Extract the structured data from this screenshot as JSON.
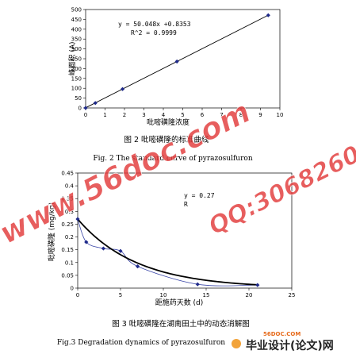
{
  "chart_data": [
    {
      "type": "scatter",
      "x": [
        0,
        0.5,
        1.9,
        4.7,
        9.4
      ],
      "y": [
        0,
        25,
        96,
        236,
        471
      ],
      "trendline": {
        "slope": 50.048,
        "intercept": 0.8353
      },
      "equation": "y = 50.048x +0.8353",
      "r2": "R^2 = 0.9999",
      "xlabel": "吡嘧磺隆浓度",
      "ylabel": "峰面积 (A)",
      "xlim": [
        0,
        10
      ],
      "ylim": [
        0,
        500
      ],
      "xticks": [
        "0",
        "1",
        "2",
        "3",
        "4",
        "5",
        "6",
        "7",
        "8",
        "9",
        "10"
      ],
      "yticks": [
        "0",
        "50",
        "100",
        "150",
        "200",
        "250",
        "300",
        "350",
        "400",
        "450",
        "500"
      ],
      "caption_cn": "图 2    吡嘧磺隆的标准曲线",
      "caption_en": "Fig. 2    The standard curve of pyrazosulfuron"
    },
    {
      "type": "scatter",
      "x": [
        0,
        1,
        3,
        5,
        7,
        14,
        21
      ],
      "y": [
        0.27,
        0.18,
        0.155,
        0.145,
        0.085,
        0.015,
        0.012
      ],
      "trendline_label": "y = 0.27",
      "trendline_label_2": "R",
      "xlabel": "距施药天数    (d)",
      "ylabel": "吡嘧磺隆 (mg/kg)",
      "xlim": [
        0,
        25
      ],
      "ylim": [
        0,
        0.45
      ],
      "xticks": [
        "0",
        "5",
        "10",
        "15",
        "20",
        "25"
      ],
      "yticks": [
        "0",
        "0.05",
        "0.1",
        "0.15",
        "0.2",
        "0.25",
        "0.3",
        "0.35",
        "0.4",
        "0.45"
      ],
      "caption_cn": "图 3    吡嘧磺隆在湖南田土中的动态消解图",
      "caption_en": "Fig.3    Degradation dynamics of pyrazosulfuron"
    }
  ],
  "watermark": {
    "site": "www.56doc.com",
    "qq": "QQ:306826066"
  },
  "footer": {
    "small": "56DOC.COM",
    "main": "毕业设计(论文)网"
  },
  "colors": {
    "watermark": "#e23b3b",
    "marker": "#1f2a8a",
    "raw_line": "#3b47a8"
  }
}
